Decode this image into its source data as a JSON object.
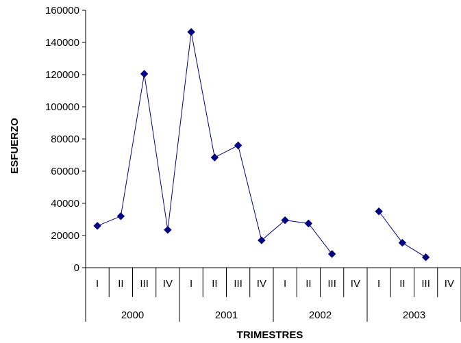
{
  "chart_data": {
    "type": "line",
    "title": "",
    "xlabel": "TRIMESTRES",
    "ylabel": "ESFUERZO",
    "ylim": [
      0,
      160000
    ],
    "yticks": [
      0,
      20000,
      40000,
      60000,
      80000,
      100000,
      120000,
      140000,
      160000
    ],
    "ytick_labels": [
      "0",
      "20000",
      "40000",
      "60000",
      "80000",
      "100000",
      "120000",
      "140000",
      "160000"
    ],
    "groups": [
      {
        "label": "2000",
        "categories": [
          "I",
          "II",
          "III",
          "IV"
        ]
      },
      {
        "label": "2001",
        "categories": [
          "I",
          "II",
          "III",
          "IV"
        ]
      },
      {
        "label": "2002",
        "categories": [
          "I",
          "II",
          "III",
          "IV"
        ]
      },
      {
        "label": "2003",
        "categories": [
          "I",
          "II",
          "III",
          "IV"
        ]
      }
    ],
    "series": [
      {
        "values": [
          26000,
          32000,
          120500,
          23500,
          146500,
          68500,
          76000,
          17000,
          29500,
          27500,
          8500,
          null,
          35000,
          15500,
          6500,
          null
        ],
        "color": "#000080"
      }
    ],
    "grid": false,
    "legend": "none"
  }
}
